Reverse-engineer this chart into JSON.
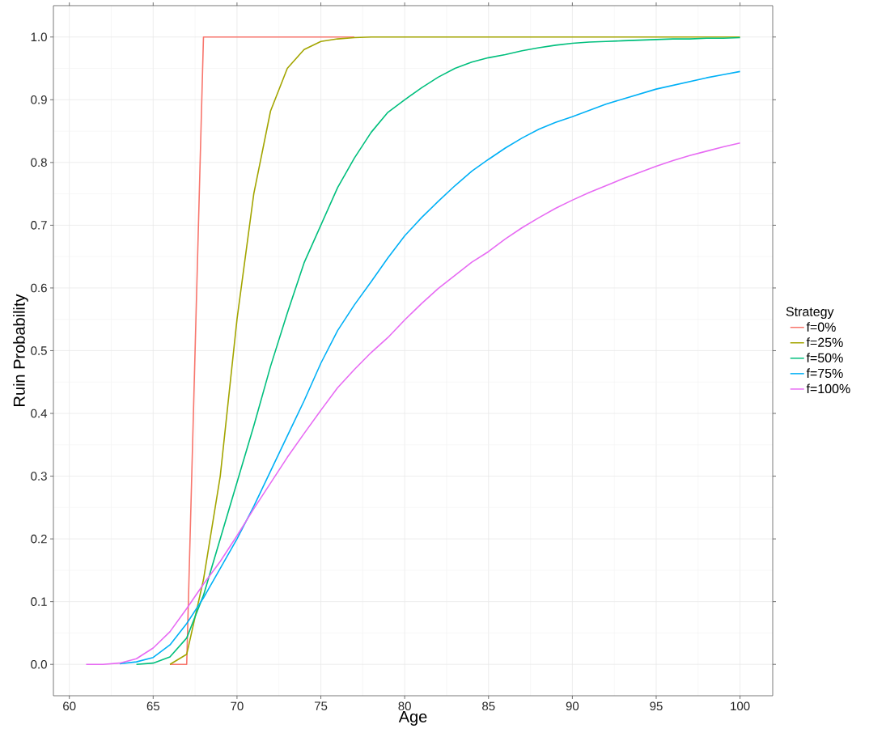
{
  "chart_data": {
    "type": "line",
    "xlabel": "Age",
    "ylabel": "Ruin Probability",
    "legend_title": "Strategy",
    "legend": "right",
    "grid": true,
    "marker": "none",
    "line_style": "solid",
    "x": [
      61,
      62,
      63,
      64,
      65,
      66,
      67,
      68,
      69,
      70,
      71,
      72,
      73,
      74,
      75,
      76,
      77,
      78,
      79,
      80,
      81,
      82,
      83,
      84,
      85,
      86,
      87,
      88,
      89,
      90,
      91,
      92,
      93,
      94,
      95,
      96,
      97,
      98,
      99,
      100
    ],
    "xlim": [
      59.05,
      101.95
    ],
    "xticks": [
      60,
      65,
      70,
      75,
      80,
      85,
      90,
      95,
      100
    ],
    "ylim": [
      -0.05,
      1.05
    ],
    "yticks": [
      {
        "value": 0,
        "label": "0.0"
      },
      0.1,
      0.2,
      0.3,
      0.4,
      0.5,
      0.6,
      0.7,
      0.8,
      0.9,
      {
        "value": 1,
        "label": "1.0"
      }
    ],
    "series": [
      {
        "name": "f=0%",
        "color": "#f8766d",
        "values": [
          null,
          null,
          null,
          null,
          null,
          0,
          0,
          1,
          1,
          1,
          1,
          1,
          1,
          1,
          1,
          1,
          1,
          null,
          null,
          null,
          null,
          null,
          null,
          null,
          null,
          null,
          null,
          null,
          null,
          null,
          null,
          null,
          null,
          null,
          null,
          null,
          null,
          null,
          null,
          null
        ]
      },
      {
        "name": "f=25%",
        "color": "#a3a500",
        "values": [
          null,
          null,
          null,
          null,
          null,
          0,
          0.016,
          0.135,
          0.3,
          0.55,
          0.75,
          0.882,
          0.95,
          0.98,
          0.993,
          0.997,
          0.999,
          1,
          1,
          1,
          1,
          1,
          1,
          1,
          1,
          1,
          1,
          1,
          1,
          1,
          1,
          1,
          1,
          1,
          1,
          1,
          1,
          1,
          1,
          1
        ]
      },
      {
        "name": "f=50%",
        "color": "#00bf7d",
        "values": [
          null,
          null,
          null,
          0,
          0.002,
          0.012,
          0.042,
          0.11,
          0.2,
          0.29,
          0.38,
          0.475,
          0.56,
          0.64,
          0.7,
          0.76,
          0.807,
          0.848,
          0.88,
          0.9,
          0.919,
          0.936,
          0.95,
          0.96,
          0.967,
          0.972,
          0.978,
          0.983,
          0.987,
          0.99,
          0.992,
          0.993,
          0.994,
          0.995,
          0.996,
          0.997,
          0.997,
          0.998,
          0.998,
          0.999
        ]
      },
      {
        "name": "f=75%",
        "color": "#00b0f6",
        "values": [
          null,
          null,
          0.001,
          0.004,
          0.011,
          0.031,
          0.065,
          0.106,
          0.153,
          0.2,
          0.252,
          0.308,
          0.364,
          0.42,
          0.48,
          0.532,
          0.573,
          0.61,
          0.648,
          0.683,
          0.712,
          0.738,
          0.763,
          0.786,
          0.805,
          0.823,
          0.839,
          0.853,
          0.864,
          0.873,
          0.883,
          0.893,
          0.901,
          0.909,
          0.917,
          0.923,
          0.929,
          0.935,
          0.94,
          0.945
        ]
      },
      {
        "name": "f=100%",
        "color": "#e76bf3",
        "values": [
          0,
          0,
          0.002,
          0.009,
          0.026,
          0.052,
          0.089,
          0.128,
          0.164,
          0.205,
          0.248,
          0.289,
          0.33,
          0.368,
          0.405,
          0.441,
          0.47,
          0.497,
          0.521,
          0.549,
          0.575,
          0.599,
          0.62,
          0.641,
          0.658,
          0.678,
          0.696,
          0.712,
          0.727,
          0.74,
          0.752,
          0.763,
          0.774,
          0.784,
          0.794,
          0.803,
          0.811,
          0.818,
          0.825,
          0.831
        ]
      }
    ]
  }
}
